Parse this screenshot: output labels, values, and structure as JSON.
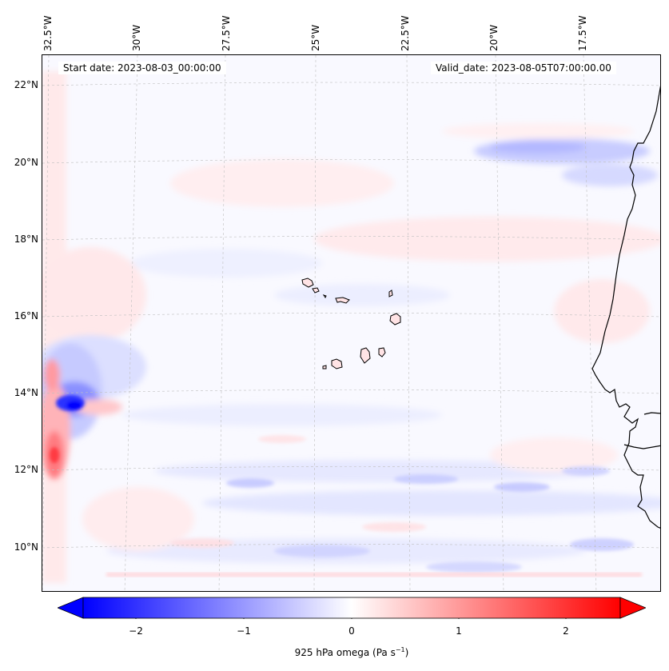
{
  "map": {
    "start_date_label": "Start date: 2023-08-03_00:00:00",
    "valid_date_label": "Valid_date: 2023-08-05T07:00:00.00",
    "lon_ticks": [
      "32.5°W",
      "30°W",
      "27.5°W",
      "25°W",
      "22.5°W",
      "20°W",
      "17.5°W"
    ],
    "lat_ticks": [
      "22°N",
      "20°N",
      "18°N",
      "16°N",
      "14°N",
      "12°N",
      "10°N"
    ],
    "field_colors": {
      "negative": "#0000ff",
      "positive": "#ff0000",
      "neutral": "#ffffff"
    },
    "coastline_color": "#000000"
  },
  "colorbar": {
    "ticks": [
      "−2",
      "−1",
      "0",
      "1",
      "2"
    ],
    "label_text": "925 hPa omega (Pa s",
    "label_sup": "−1",
    "label_close": ")",
    "range": [
      -2.6,
      2.6
    ]
  }
}
